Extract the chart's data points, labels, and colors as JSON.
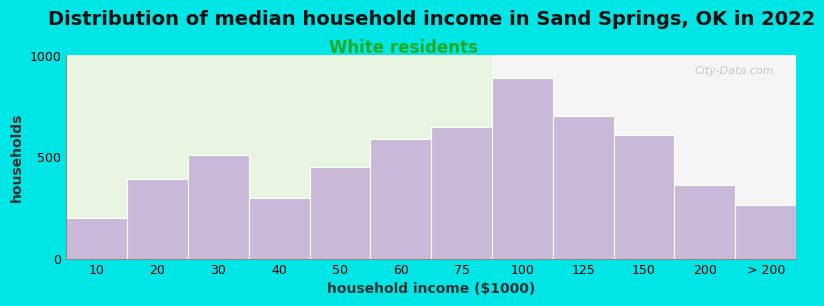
{
  "title": "Distribution of median household income in Sand Springs, OK in 2022",
  "subtitle": "White residents",
  "xlabel": "household income ($1000)",
  "ylabel": "households",
  "bar_labels": [
    "10",
    "20",
    "30",
    "40",
    "50",
    "60",
    "75",
    "100",
    "125",
    "150",
    "200",
    "> 200"
  ],
  "bar_values": [
    200,
    390,
    510,
    300,
    450,
    590,
    650,
    890,
    700,
    610,
    360,
    265
  ],
  "bar_color": "#c9b8d8",
  "bar_edge_color": "#ffffff",
  "ylim": [
    0,
    1000
  ],
  "yticks": [
    0,
    500,
    1000
  ],
  "background_color": "#00e5e5",
  "plot_bg_left": "#e8f5e0",
  "plot_bg_right": "#f5f5f5",
  "title_fontsize": 14,
  "subtitle_fontsize": 12,
  "subtitle_color": "#22aa22",
  "axis_label_fontsize": 10,
  "tick_fontsize": 9,
  "watermark": "City-Data.com"
}
